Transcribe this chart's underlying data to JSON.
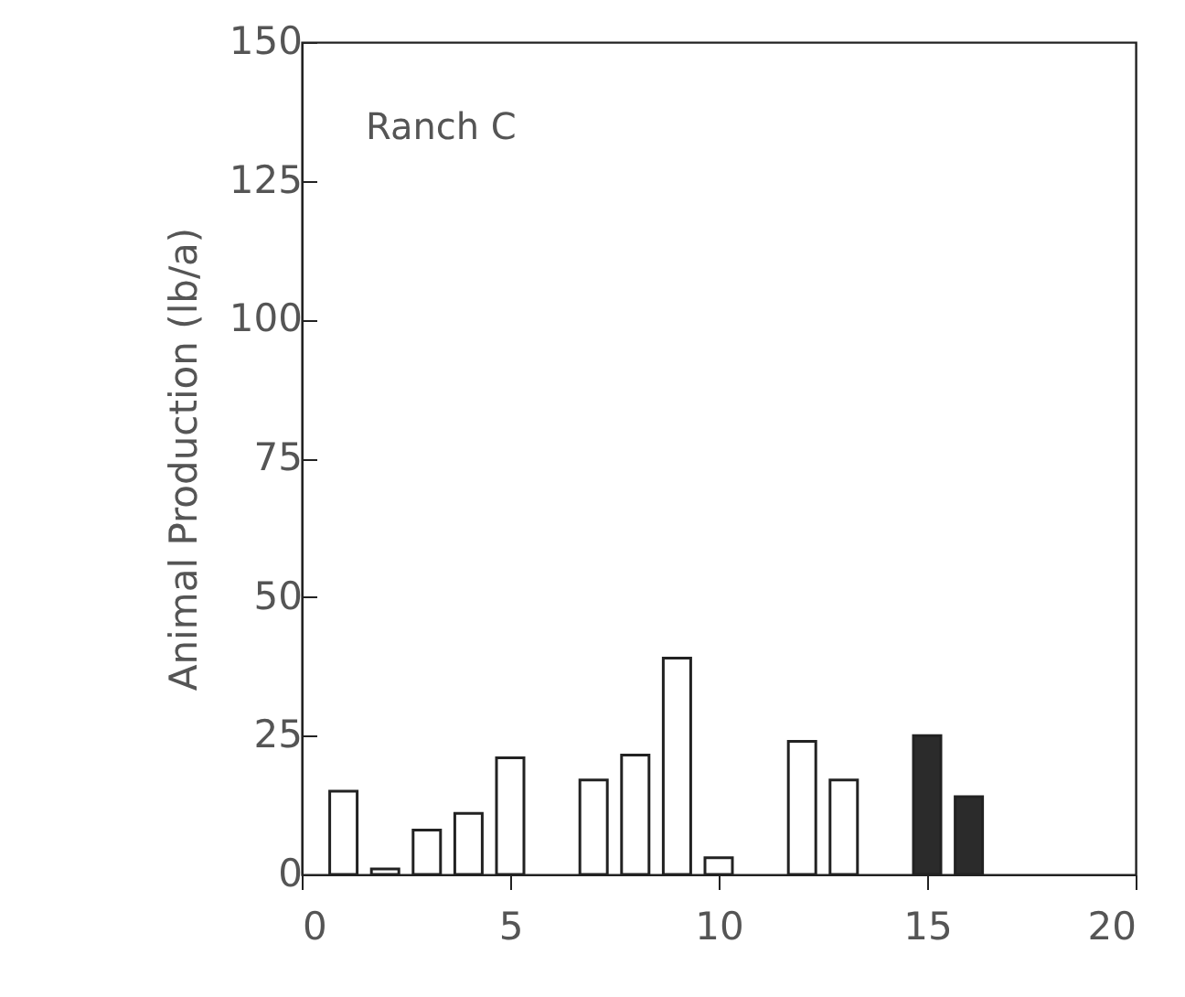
{
  "chart_data": {
    "type": "bar",
    "ylabel": "Animal Production (lb/a)",
    "annotations": [
      "Ranch C"
    ],
    "xlim": [
      0,
      20
    ],
    "xticks": [
      0,
      5,
      10,
      15,
      20
    ],
    "ylim": [
      0,
      150
    ],
    "yticks": [
      0,
      25,
      50,
      75,
      100,
      125,
      150
    ],
    "grid": false,
    "series": [
      {
        "color": "#ffffff",
        "x": [
          1,
          2,
          3,
          4,
          5,
          7,
          8,
          9,
          10,
          12,
          13
        ],
        "values": [
          15,
          1,
          8,
          11,
          21,
          17,
          21.5,
          39,
          3,
          24,
          17
        ]
      },
      {
        "color": "#2b2b2b",
        "x": [
          15,
          16
        ],
        "values": [
          25,
          14
        ]
      }
    ]
  }
}
